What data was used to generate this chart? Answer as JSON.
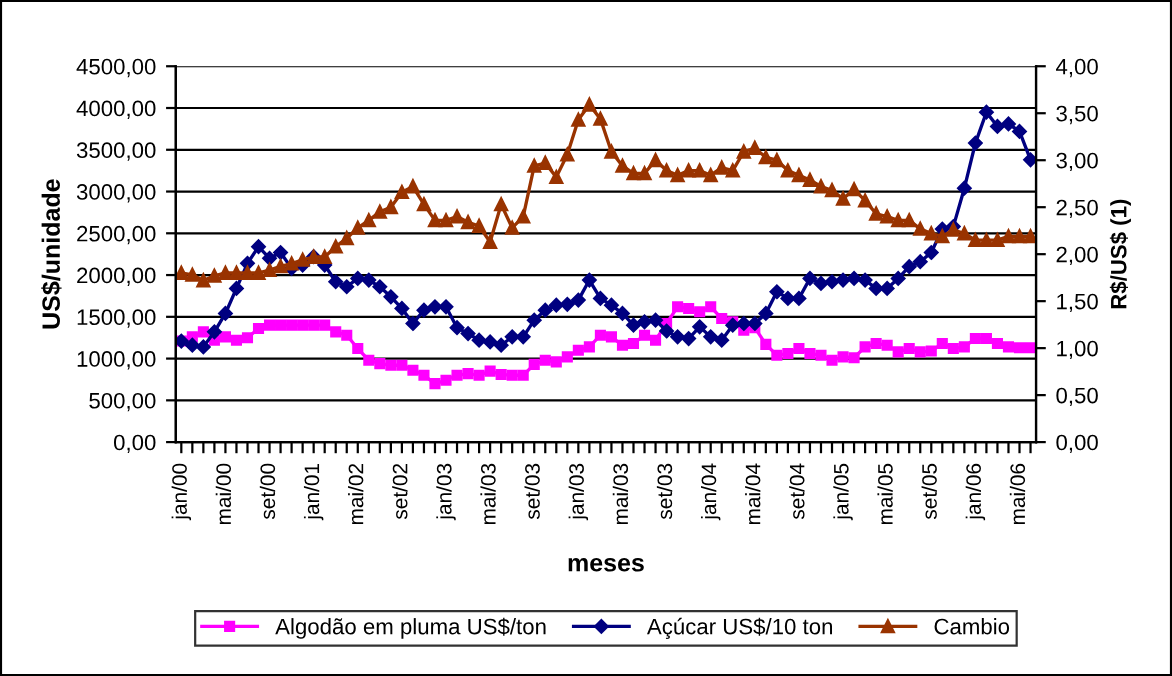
{
  "chart_data": {
    "type": "line",
    "xlabel": "meses",
    "ylabel": "US$/unidade",
    "y2label": "R$/US$ (1)",
    "categories": [
      "jan/00",
      null,
      null,
      null,
      "mai/00",
      null,
      null,
      null,
      "set/00",
      null,
      null,
      null,
      "jan/01",
      null,
      null,
      null,
      "mai/02",
      null,
      null,
      null,
      "set/02",
      null,
      null,
      null,
      "jan/03",
      null,
      null,
      null,
      "mai/03",
      null,
      null,
      null,
      "set/03",
      null,
      null,
      null,
      "jan/03",
      null,
      null,
      null,
      "mai/03",
      null,
      null,
      null,
      "set/03",
      null,
      null,
      null,
      "jan/04",
      null,
      null,
      null,
      "mai/04",
      null,
      null,
      null,
      "set/04",
      null,
      null,
      null,
      "jan/05",
      null,
      null,
      null,
      "mai/05",
      null,
      null,
      null,
      "set/05",
      null,
      null,
      null,
      "jan/06",
      null,
      null,
      null,
      "mai/06",
      null
    ],
    "series": [
      {
        "name": "Algodão em pluma US$/ton",
        "color": "#ff00ff",
        "marker": "square",
        "values": [
          1210,
          1260,
          1320,
          1220,
          1260,
          1220,
          1250,
          1360,
          1400,
          1400,
          1400,
          1400,
          1400,
          1400,
          1320,
          1280,
          1120,
          980,
          940,
          920,
          920,
          860,
          800,
          700,
          740,
          800,
          820,
          800,
          850,
          810,
          800,
          800,
          930,
          980,
          960,
          1020,
          1100,
          1140,
          1280,
          1260,
          1160,
          1180,
          1280,
          1220,
          1420,
          1620,
          1600,
          1560,
          1620,
          1480,
          1440,
          1340,
          1370,
          1170,
          1040,
          1060,
          1120,
          1060,
          1040,
          980,
          1020,
          1010,
          1140,
          1180,
          1160,
          1080,
          1120,
          1080,
          1090,
          1180,
          1120,
          1140,
          1240,
          1240,
          1180,
          1140,
          1130,
          1130
        ]
      },
      {
        "name": "Açúcar US$/10 ton",
        "color": "#000080",
        "marker": "diamond",
        "values": [
          1210,
          1160,
          1140,
          1320,
          1540,
          1840,
          2140,
          2340,
          2200,
          2270,
          2080,
          2120,
          2220,
          2120,
          1920,
          1860,
          1960,
          1940,
          1860,
          1740,
          1600,
          1420,
          1580,
          1620,
          1620,
          1370,
          1300,
          1220,
          1200,
          1160,
          1260,
          1260,
          1460,
          1580,
          1640,
          1650,
          1700,
          1940,
          1720,
          1640,
          1540,
          1400,
          1440,
          1460,
          1330,
          1260,
          1240,
          1380,
          1260,
          1220,
          1400,
          1420,
          1420,
          1540,
          1800,
          1720,
          1720,
          1960,
          1900,
          1920,
          1940,
          1960,
          1940,
          1840,
          1840,
          1960,
          2100,
          2160,
          2270,
          2550,
          2580,
          3040,
          3580,
          3950,
          3780,
          3810,
          3720,
          3380
        ]
      },
      {
        "name": "Cambio",
        "color": "#993300",
        "marker": "triangle",
        "axis": "y2",
        "values": [
          1.8,
          1.78,
          1.72,
          1.77,
          1.8,
          1.8,
          1.8,
          1.8,
          1.83,
          1.87,
          1.9,
          1.94,
          1.97,
          1.97,
          2.08,
          2.17,
          2.28,
          2.36,
          2.45,
          2.5,
          2.66,
          2.72,
          2.53,
          2.36,
          2.36,
          2.4,
          2.34,
          2.3,
          2.13,
          2.53,
          2.28,
          2.4,
          2.94,
          2.97,
          2.82,
          3.06,
          3.43,
          3.59,
          3.44,
          3.09,
          2.94,
          2.86,
          2.86,
          3.0,
          2.89,
          2.84,
          2.89,
          2.89,
          2.84,
          2.92,
          2.89,
          3.09,
          3.13,
          3.03,
          3.0,
          2.89,
          2.84,
          2.79,
          2.72,
          2.68,
          2.59,
          2.69,
          2.57,
          2.43,
          2.4,
          2.36,
          2.36,
          2.27,
          2.22,
          2.19,
          2.26,
          2.22,
          2.15,
          2.15,
          2.15,
          2.19,
          2.19,
          2.19
        ]
      }
    ],
    "ylim": [
      0,
      4500
    ],
    "yticks": [
      {
        "value": 0,
        "label": "0,00"
      },
      {
        "value": 500,
        "label": "500,00"
      },
      {
        "value": 1000,
        "label": "1000,00"
      },
      {
        "value": 1500,
        "label": "1500,00"
      },
      {
        "value": 2000,
        "label": "2000,00"
      },
      {
        "value": 2500,
        "label": "2500,00"
      },
      {
        "value": 3000,
        "label": "3000,00"
      },
      {
        "value": 3500,
        "label": "3500,00"
      },
      {
        "value": 4000,
        "label": "4000,00"
      },
      {
        "value": 4500,
        "label": "4500,00"
      }
    ],
    "y2lim": [
      0,
      4
    ],
    "y2ticks": [
      {
        "value": 0,
        "label": "0,00"
      },
      {
        "value": 0.5,
        "label": "0,50"
      },
      {
        "value": 1,
        "label": "1,00"
      },
      {
        "value": 1.5,
        "label": "1,50"
      },
      {
        "value": 2,
        "label": "2,00"
      },
      {
        "value": 2.5,
        "label": "2,50"
      },
      {
        "value": 3,
        "label": "3,00"
      },
      {
        "value": 3.5,
        "label": "3,50"
      },
      {
        "value": 4,
        "label": "4,00"
      }
    ],
    "grid": "y",
    "legend": "bottom",
    "line_style": "solid"
  }
}
